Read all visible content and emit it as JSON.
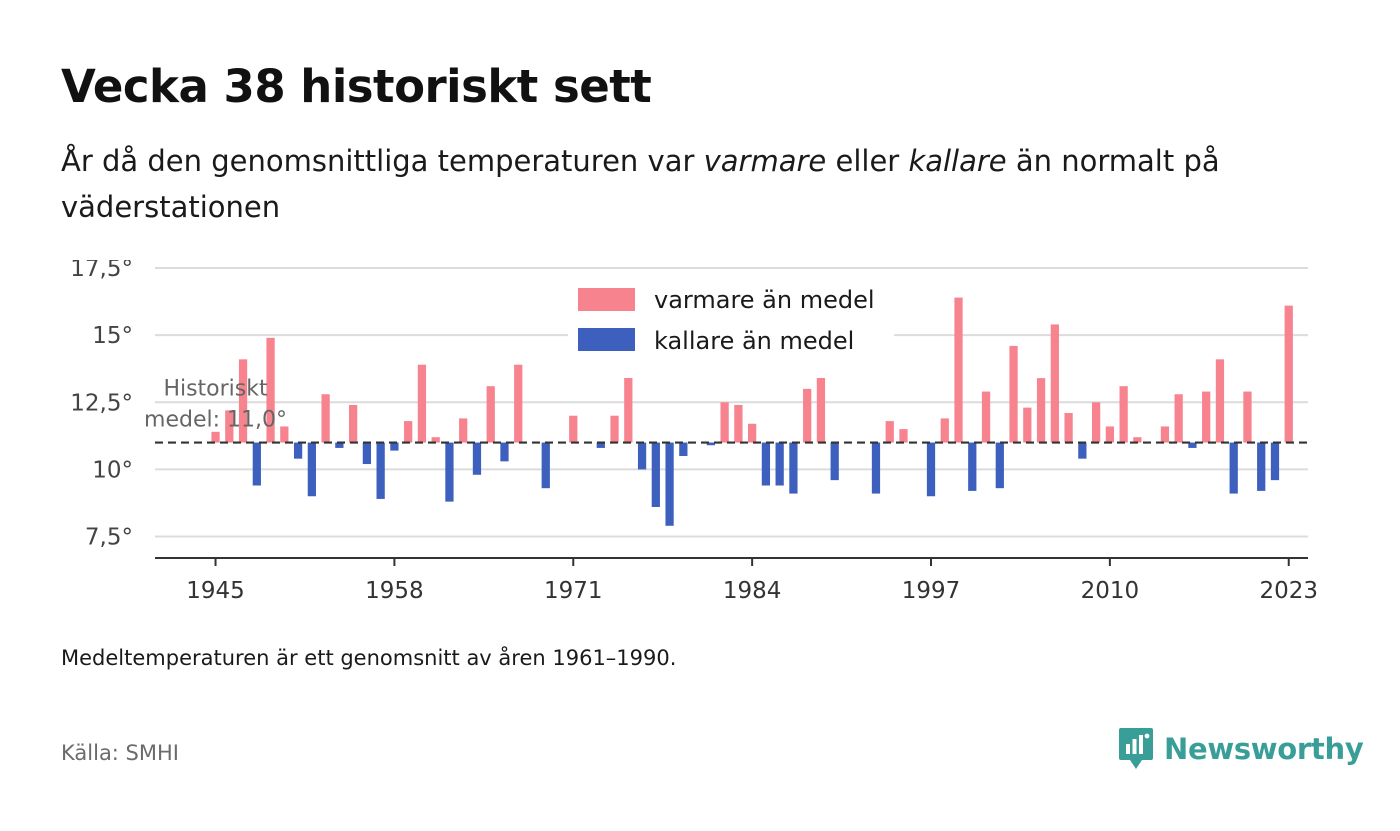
{
  "title": "Vecka 38 historiskt sett",
  "subtitle": {
    "part1": "År då den genomsnittliga temperaturen var ",
    "warm_word": "varmare",
    "part2": " eller ",
    "cold_word": "kallare",
    "part3": " än normalt på väderstationen"
  },
  "note": "Medeltemperaturen är ett genomsnitt av åren 1961–1990.",
  "source": "Källa: SMHI",
  "brand": {
    "name": "Newsworthy",
    "icon": "newsworthy-logo-icon",
    "color": "#3a9e98"
  },
  "chart_data": {
    "type": "bar",
    "baseline": 11.0,
    "baseline_label_line1": "Historiskt",
    "baseline_label_line2": "medel: 11,0°",
    "ylim": [
      6.7,
      17.8
    ],
    "yticks": [
      7.5,
      10,
      12.5,
      15,
      17.5
    ],
    "ytick_labels": [
      "7,5°",
      "10°",
      "12,5°",
      "15°",
      "17,5°"
    ],
    "xlim": [
      1940.6,
      2024.4
    ],
    "xticks": [
      1945,
      1958,
      1971,
      1984,
      1997,
      2010,
      2023
    ],
    "xtick_labels": [
      "1945",
      "1958",
      "1971",
      "1984",
      "1997",
      "2010",
      "2023"
    ],
    "grid": true,
    "legend_position": "top-center",
    "legend": [
      {
        "label": "varmare än medel",
        "color": "#f7838f"
      },
      {
        "label": "kallare än medel",
        "color": "#3d60be"
      }
    ],
    "colors": {
      "warm": "#f7838f",
      "cold": "#3d60be",
      "baseline": "#333333",
      "grid": "#dcdcdc",
      "axis": "#333333"
    },
    "x": [
      1945,
      1946,
      1947,
      1948,
      1949,
      1950,
      1951,
      1952,
      1953,
      1954,
      1955,
      1956,
      1957,
      1958,
      1959,
      1960,
      1961,
      1962,
      1963,
      1964,
      1965,
      1966,
      1967,
      1968,
      1969,
      1970,
      1971,
      1972,
      1973,
      1974,
      1975,
      1976,
      1977,
      1978,
      1979,
      1980,
      1981,
      1982,
      1983,
      1984,
      1985,
      1986,
      1987,
      1988,
      1989,
      1990,
      1991,
      1992,
      1993,
      1994,
      1995,
      1996,
      1997,
      1998,
      1999,
      2000,
      2001,
      2002,
      2003,
      2004,
      2005,
      2006,
      2007,
      2008,
      2009,
      2010,
      2011,
      2012,
      2013,
      2014,
      2015,
      2016,
      2017,
      2018,
      2019,
      2020,
      2021,
      2022,
      2023
    ],
    "values": [
      11.4,
      12.2,
      14.1,
      9.4,
      14.9,
      11.6,
      10.4,
      9.0,
      12.8,
      10.8,
      12.4,
      10.2,
      8.9,
      10.7,
      11.8,
      13.9,
      11.2,
      8.8,
      11.9,
      9.8,
      13.1,
      10.3,
      13.9,
      11.0,
      9.3,
      11.0,
      12.0,
      11.0,
      10.8,
      12.0,
      14.2,
      10.0,
      8.6,
      7.9,
      10.5,
      11.0,
      10.9,
      12.5,
      12.4,
      11.7,
      9.4,
      9.4,
      9.1,
      13.0,
      13.9,
      9.6,
      11.0,
      11.0,
      9.1,
      11.8,
      11.5,
      11.0,
      9.0,
      11.9,
      16.4,
      9.2,
      12.9,
      9.3,
      14.6,
      12.3,
      13.4,
      15.4,
      12.1,
      10.4,
      12.5,
      11.6,
      13.1,
      11.2,
      11.0,
      11.6,
      12.8,
      10.8,
      12.9,
      14.1,
      9.1,
      12.9,
      9.2,
      9.6,
      16.1
    ]
  }
}
